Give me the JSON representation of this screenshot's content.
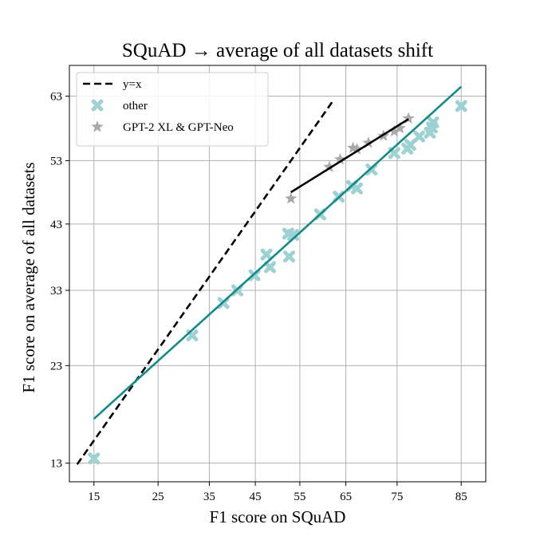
{
  "chart_data": {
    "type": "scatter",
    "title": "SQuAD → average of all datasets shift",
    "xlabel": "F1 score on SQuAD",
    "ylabel": "F1 score on average of all datasets",
    "scale": "probit",
    "xlim": [
      12,
      88
    ],
    "ylim": [
      11.5,
      67.5
    ],
    "xticks": [
      15,
      25,
      35,
      45,
      55,
      65,
      75,
      85
    ],
    "yticks": [
      13,
      23,
      33,
      43,
      53,
      63
    ],
    "grid": true,
    "legend": {
      "location": "top-left",
      "entries": [
        {
          "label": "y=x",
          "kind": "dashed-line",
          "color": "#000000"
        },
        {
          "label": "other",
          "kind": "x-marker",
          "color": "#9ed2d2"
        },
        {
          "label": "GPT-2 XL & GPT-Neo",
          "kind": "star-marker",
          "color": "#a9a9a9"
        }
      ]
    },
    "series": [
      {
        "name": "other",
        "marker": "x",
        "color": "#9ed2d2",
        "points": [
          [
            15,
            13.4
          ],
          [
            31.5,
            26.8
          ],
          [
            38,
            31.2
          ],
          [
            41,
            33.0
          ],
          [
            44.8,
            35.2
          ],
          [
            47.5,
            38.3
          ],
          [
            48.3,
            36.4
          ],
          [
            52.4,
            41.5
          ],
          [
            52.6,
            38.0
          ],
          [
            53.5,
            41.3
          ],
          [
            59.5,
            44.5
          ],
          [
            63.5,
            47.3
          ],
          [
            66.3,
            49.0
          ],
          [
            67.3,
            48.6
          ],
          [
            70.2,
            51.6
          ],
          [
            74.5,
            54.2
          ],
          [
            76.8,
            54.9
          ],
          [
            77.3,
            55.5
          ],
          [
            78.8,
            56.8
          ],
          [
            80.5,
            57.4
          ],
          [
            80.8,
            58.2
          ],
          [
            81.0,
            59.0
          ],
          [
            85.0,
            61.5
          ]
        ]
      },
      {
        "name": "GPT-2 XL & GPT-Neo",
        "marker": "star",
        "color": "#a9a9a9",
        "points": [
          [
            53.0,
            47.0
          ],
          [
            61.5,
            52.0
          ],
          [
            63.8,
            53.2
          ],
          [
            66.5,
            55.0
          ],
          [
            67.3,
            54.8
          ],
          [
            69.6,
            55.8
          ],
          [
            72.5,
            56.9
          ],
          [
            74.5,
            57.6
          ],
          [
            75.5,
            58.1
          ],
          [
            77.0,
            59.6
          ]
        ]
      }
    ],
    "lines": [
      {
        "name": "y=x",
        "style": "dashed",
        "color": "#000000",
        "x": [
          12.9,
          62.4
        ],
        "y": [
          12.9,
          62.4
        ]
      },
      {
        "name": "fit-other",
        "style": "solid",
        "color": "#138a8a",
        "x": [
          15,
          85
        ],
        "y": [
          17.1,
          64.4
        ]
      },
      {
        "name": "fit-gpt",
        "style": "solid",
        "color": "#000000",
        "x": [
          53.0,
          77.0
        ],
        "y": [
          48.0,
          59.5
        ]
      }
    ]
  }
}
